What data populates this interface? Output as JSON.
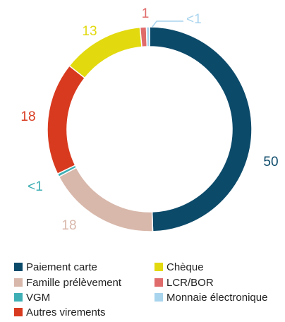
{
  "chart_data": {
    "type": "donut",
    "categories": [
      "Paiement carte",
      "Famille prélèvement",
      "VGM",
      "Autres virements",
      "Chèque",
      "LCR/BOR",
      "Monnaie électronique"
    ],
    "values": [
      50,
      18,
      0.5,
      18,
      13,
      1,
      0.5
    ],
    "value_labels": [
      "50",
      "18",
      "<1",
      "18",
      "13",
      "1",
      "<1"
    ],
    "colors": [
      "#0c4a6a",
      "#d8b8ab",
      "#3eafb4",
      "#d83a1f",
      "#e2d90f",
      "#e06b6b",
      "#a8d4ee"
    ]
  }
}
